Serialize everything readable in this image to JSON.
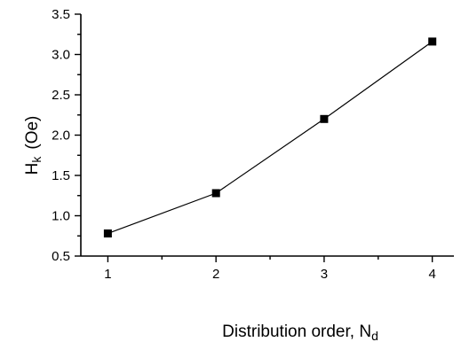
{
  "chart_data": {
    "type": "line",
    "title": "",
    "xlabel": "Distribution order, ",
    "xlabel_sub": "N",
    "xlabel_subscript": "d",
    "ylabel": "H",
    "ylabel_subscript": "k",
    "ylabel_unit": "(Oe)",
    "xlim": [
      0.75,
      4.2
    ],
    "ylim": [
      0.5,
      3.5
    ],
    "x_ticks": [
      1,
      2,
      3,
      4
    ],
    "x_tick_labels": [
      "1",
      "2",
      "3",
      "4"
    ],
    "y_ticks": [
      0.5,
      1.0,
      1.5,
      2.0,
      2.5,
      3.0,
      3.5
    ],
    "y_tick_labels": [
      "0.5",
      "1.0",
      "1.5",
      "2.0",
      "2.5",
      "3.0",
      "3.5"
    ],
    "grid": false,
    "legend": "none",
    "marker": "square",
    "series": [
      {
        "x": [
          1,
          2,
          3,
          4
        ],
        "values": [
          0.78,
          1.28,
          2.2,
          3.16
        ]
      }
    ]
  }
}
